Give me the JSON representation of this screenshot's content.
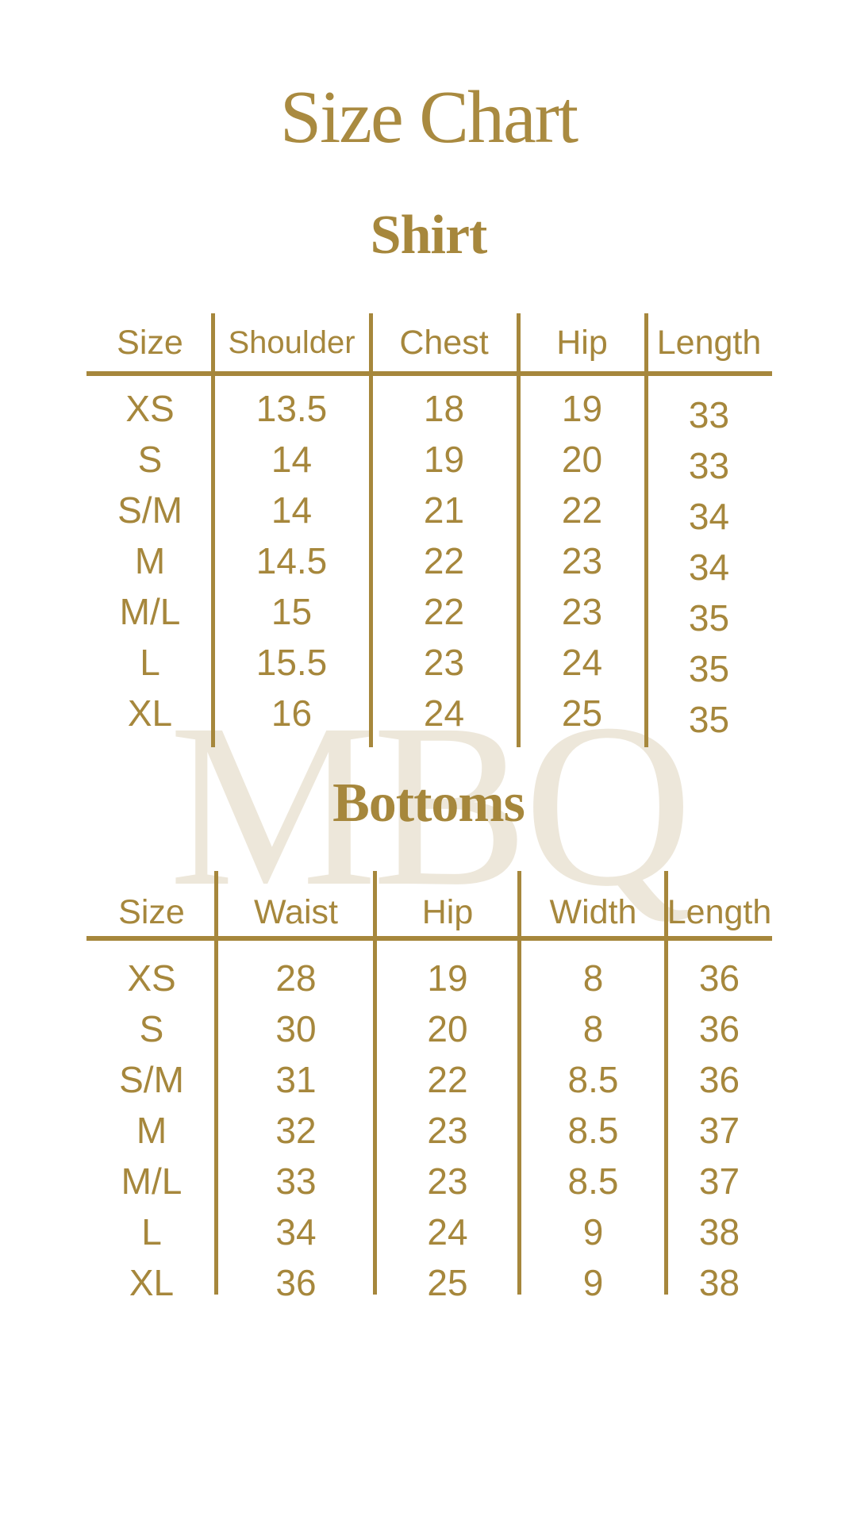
{
  "page": {
    "title": "Size Chart",
    "watermark": "MBQ",
    "colors": {
      "gold": "#A6873C",
      "gold_title": "#A98A40",
      "watermark_beige": "#EDE7DA",
      "background": "#FFFFFF"
    }
  },
  "sections": [
    {
      "heading": "Shirt",
      "columns": [
        "Size",
        "Shoulder",
        "Chest",
        "Hip",
        "Length"
      ],
      "rows": [
        {
          "size": "XS",
          "values": [
            "13.5",
            "18",
            "19",
            "33"
          ]
        },
        {
          "size": "S",
          "values": [
            "14",
            "19",
            "20",
            "33"
          ]
        },
        {
          "size": "S/M",
          "values": [
            "14",
            "21",
            "22",
            "34"
          ]
        },
        {
          "size": "M",
          "values": [
            "14.5",
            "22",
            "23",
            "34"
          ]
        },
        {
          "size": "M/L",
          "values": [
            "15",
            "22",
            "23",
            "35"
          ]
        },
        {
          "size": "L",
          "values": [
            "15.5",
            "23",
            "24",
            "35"
          ]
        },
        {
          "size": "XL",
          "values": [
            "16",
            "24",
            "25",
            "35"
          ]
        }
      ]
    },
    {
      "heading": "Bottoms",
      "columns": [
        "Size",
        "Waist",
        "Hip",
        "Width",
        "Length"
      ],
      "rows": [
        {
          "size": "XS",
          "values": [
            "28",
            "19",
            "8",
            "36"
          ]
        },
        {
          "size": "S",
          "values": [
            "30",
            "20",
            "8",
            "36"
          ]
        },
        {
          "size": "S/M",
          "values": [
            "31",
            "22",
            "8.5",
            "36"
          ]
        },
        {
          "size": "M",
          "values": [
            "32",
            "23",
            "8.5",
            "37"
          ]
        },
        {
          "size": "M/L",
          "values": [
            "33",
            "23",
            "8.5",
            "37"
          ]
        },
        {
          "size": "L",
          "values": [
            "34",
            "24",
            "9",
            "38"
          ]
        },
        {
          "size": "XL",
          "values": [
            "36",
            "25",
            "9",
            "38"
          ]
        }
      ]
    }
  ]
}
